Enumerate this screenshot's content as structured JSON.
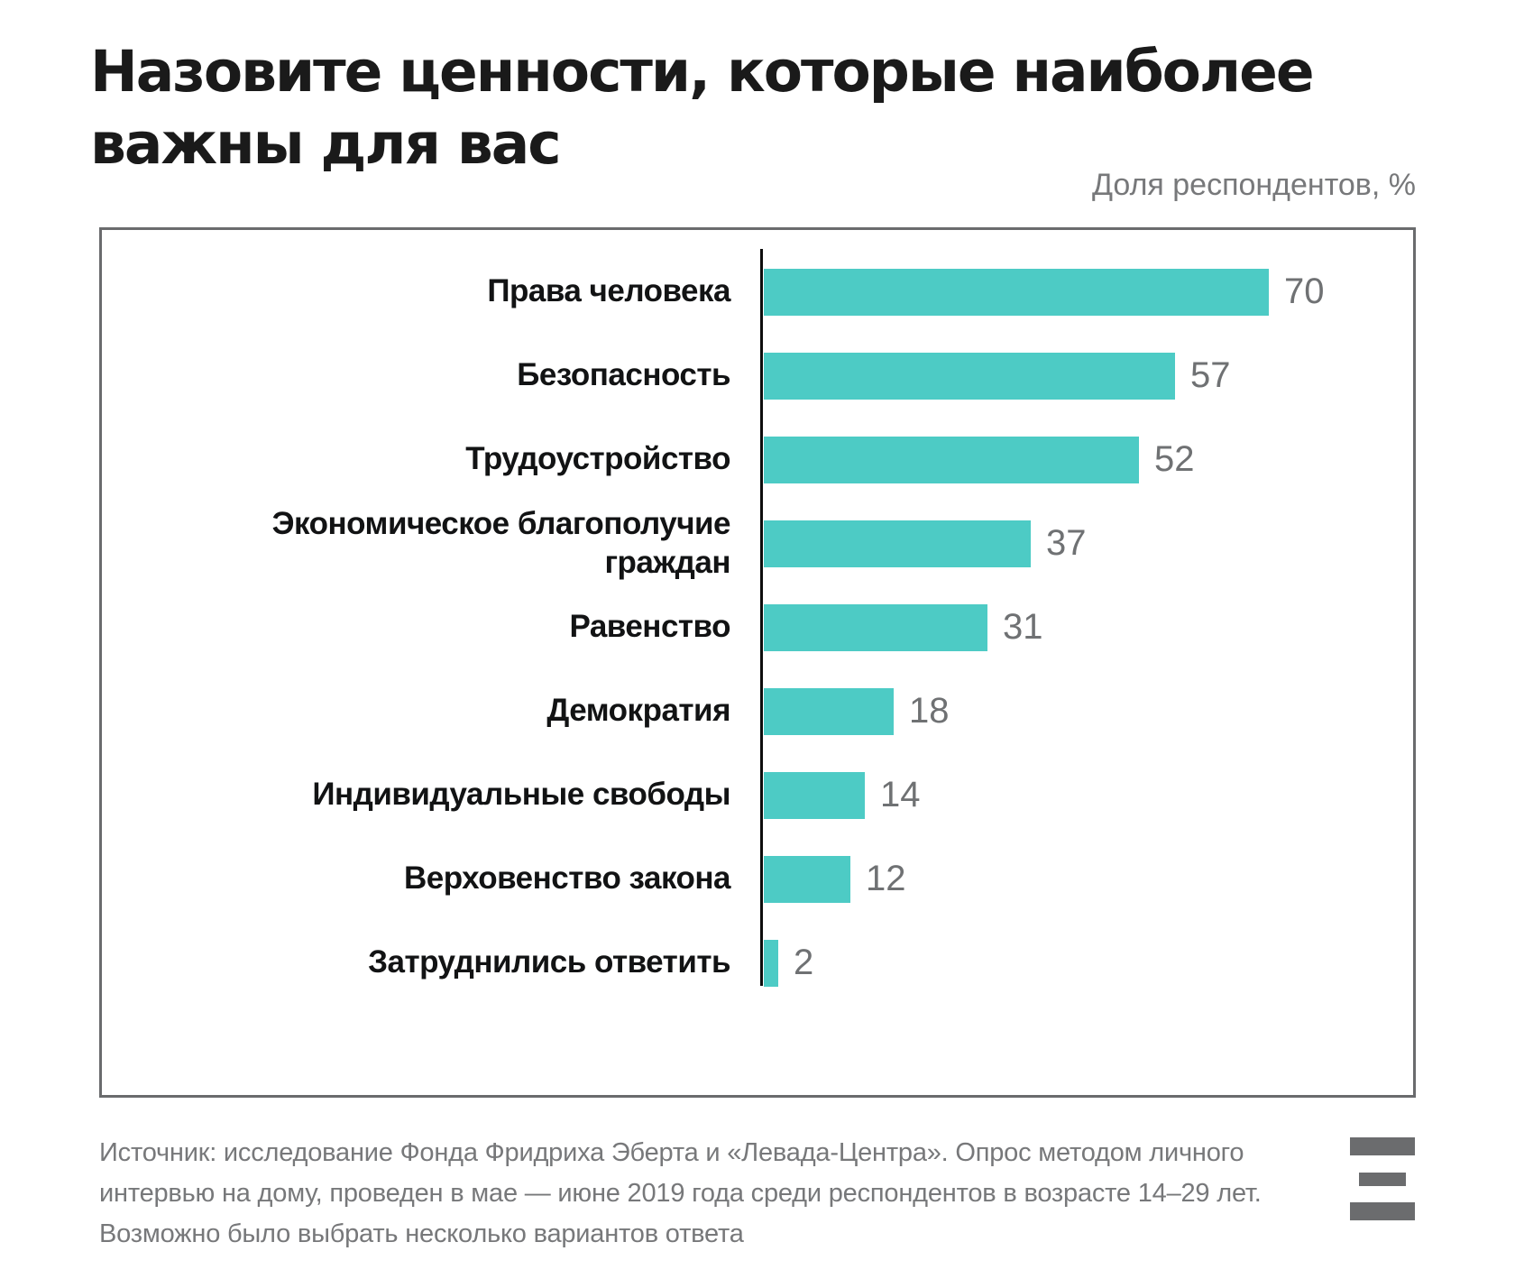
{
  "title": {
    "line1": "Назовите ценности, которые наиболее",
    "line2": "важны для вас"
  },
  "subtitle": "Доля респондентов, %",
  "chart_data": {
    "type": "bar",
    "orientation": "horizontal",
    "title": "Назовите ценности, которые наиболее важны для вас",
    "xlabel": "Доля респондентов, %",
    "xlim": [
      0,
      70
    ],
    "grid": false,
    "legend": false,
    "bar_color": "#4DCBC5",
    "value_label_color": "#6f7173",
    "categories": [
      "Права человека",
      "Безопасность",
      "Трудоустройство",
      "Экономическое благополучие граждан",
      "Равенство",
      "Демократия",
      "Индивидуальные свободы",
      "Верховенство закона",
      "Затруднились ответить"
    ],
    "values": [
      70,
      57,
      52,
      37,
      31,
      18,
      14,
      12,
      2
    ]
  },
  "footer": {
    "source_lines": [
      "Источник: исследование Фонда Фридриха Эберта и «Левада-Центра». Опрос методом личного",
      "интервью на дому, проведен в мае — июне 2019 года среди респондентов в возрасте 14–29 лет.",
      "Возможно было выбрать несколько вариантов ответа"
    ],
    "logo": "three-bars-logo"
  }
}
